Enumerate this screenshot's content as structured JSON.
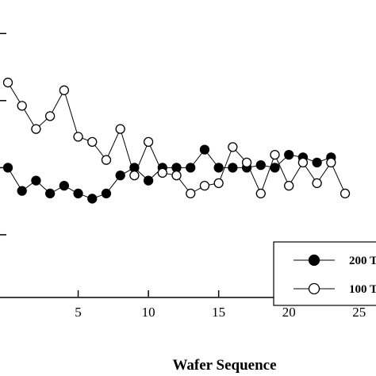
{
  "chart_data": {
    "type": "line",
    "title": "",
    "xlabel": "Wafer Sequence",
    "ylabel": "",
    "xlim": [
      0,
      26.2
    ],
    "ylim": [
      0,
      11.5
    ],
    "x_ticks": [
      5,
      10,
      15,
      20,
      25
    ],
    "x_tick_labels": [
      "5",
      "10",
      "15",
      "20",
      "25"
    ],
    "grid": false,
    "legend_position": "bottom-right",
    "series": [
      {
        "name": "200 T",
        "marker": "filled-circle",
        "color": "#000000",
        "x": [
          0,
          1,
          2,
          3,
          4,
          5,
          6,
          7,
          8,
          9,
          10,
          11,
          12,
          13,
          14,
          15,
          16,
          17,
          18,
          19,
          20,
          21,
          22,
          23
        ],
        "y": [
          5.0,
          4.1,
          4.5,
          4.0,
          4.3,
          4.0,
          3.8,
          4.0,
          4.7,
          5.0,
          4.5,
          5.0,
          5.0,
          5.0,
          5.7,
          5.0,
          5.0,
          5.0,
          5.1,
          5.0,
          5.5,
          5.4,
          5.2,
          5.4
        ]
      },
      {
        "name": "100 T",
        "marker": "open-circle",
        "color": "#000000",
        "x": [
          0,
          1,
          2,
          3,
          4,
          5,
          6,
          7,
          8,
          9,
          10,
          11,
          12,
          13,
          14,
          15,
          16,
          17,
          18,
          19,
          20,
          21,
          22,
          23,
          24
        ],
        "y": [
          8.3,
          7.4,
          6.5,
          7.0,
          8.0,
          6.2,
          6.0,
          5.3,
          6.5,
          4.7,
          6.0,
          4.8,
          4.7,
          4.0,
          4.3,
          4.4,
          5.8,
          5.2,
          4.0,
          5.5,
          4.3,
          5.2,
          4.4,
          5.2,
          4.0
        ]
      }
    ]
  }
}
